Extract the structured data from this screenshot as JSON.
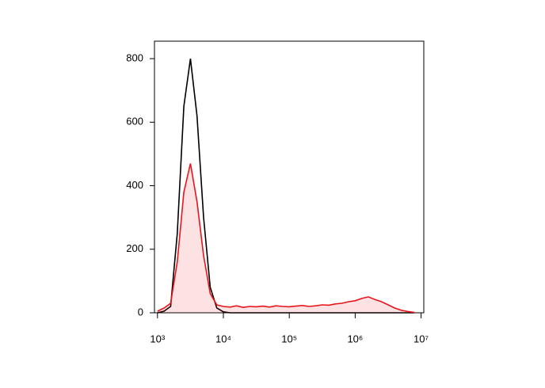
{
  "chart_data": {
    "type": "histogram-line",
    "x": [
      1000,
      1259,
      1585,
      1995,
      2512,
      3162,
      3981,
      5012,
      6310,
      7943,
      10000,
      12589,
      15849,
      19953,
      25119,
      31623,
      39811,
      50119,
      63096,
      79433,
      100000,
      125893,
      158489,
      199526,
      251189,
      316228,
      398107,
      501187,
      630957,
      794328,
      1000000,
      1258925,
      1584893,
      1995262,
      2511886,
      3162278,
      3981072,
      5011872,
      6309573,
      7943282
    ],
    "series": [
      {
        "color": "#000000",
        "fill": false,
        "values": [
          0,
          5,
          20,
          250,
          650,
          800,
          620,
          300,
          80,
          15,
          3,
          0,
          0,
          0,
          0,
          0,
          0,
          0,
          0,
          0,
          0,
          0,
          0,
          0,
          0,
          0,
          0,
          0,
          0,
          0,
          0,
          0,
          0,
          0,
          0,
          0,
          0,
          0,
          0,
          0
        ]
      },
      {
        "color": "#e8141c",
        "fill": true,
        "values": [
          5,
          15,
          30,
          160,
          380,
          470,
          350,
          180,
          60,
          25,
          20,
          18,
          22,
          17,
          20,
          19,
          21,
          18,
          22,
          20,
          19,
          21,
          23,
          20,
          22,
          25,
          24,
          28,
          30,
          35,
          38,
          45,
          50,
          42,
          35,
          25,
          15,
          8,
          4,
          1
        ]
      }
    ],
    "xscale": "log",
    "xlim": [
      900,
      11000000
    ],
    "xticks": [
      {
        "value": 1000,
        "label": "10³"
      },
      {
        "value": 10000,
        "label": "10⁴"
      },
      {
        "value": 100000,
        "label": "10⁵"
      },
      {
        "value": 1000000,
        "label": "10⁶"
      },
      {
        "value": 10000000,
        "label": "10⁷"
      }
    ],
    "ylim": [
      0,
      855
    ],
    "yticks": [
      0,
      200,
      400,
      600,
      800
    ]
  }
}
